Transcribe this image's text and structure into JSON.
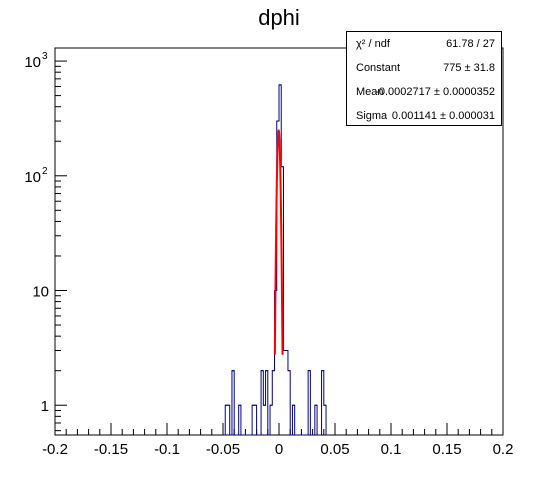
{
  "chart_data": {
    "type": "histogram",
    "title": "dphi",
    "xlabel": "",
    "ylabel": "",
    "xlim": [
      -0.2,
      0.2
    ],
    "ylim": [
      0.55,
      1300
    ],
    "yscale": "log",
    "grid": false,
    "x_ticks": [
      "-0.2",
      "-0.15",
      "-0.1",
      "-0.05",
      "0",
      "0.05",
      "0.1",
      "0.15",
      "0.2"
    ],
    "y_ticks": [
      {
        "value": 1,
        "label": "1"
      },
      {
        "value": 10,
        "label": "10"
      },
      {
        "value": 100,
        "label": "10",
        "exp": "2"
      },
      {
        "value": 1000,
        "label": "10",
        "exp": "3"
      }
    ],
    "bin_width": 0.002,
    "bins": [
      {
        "x_low": -0.048,
        "count": 1
      },
      {
        "x_low": -0.046,
        "count": 1
      },
      {
        "x_low": -0.042,
        "count": 2
      },
      {
        "x_low": -0.036,
        "count": 1
      },
      {
        "x_low": -0.024,
        "count": 1
      },
      {
        "x_low": -0.022,
        "count": 1
      },
      {
        "x_low": -0.016,
        "count": 2
      },
      {
        "x_low": -0.014,
        "count": 1
      },
      {
        "x_low": -0.012,
        "count": 2
      },
      {
        "x_low": -0.008,
        "count": 1
      },
      {
        "x_low": -0.006,
        "count": 2
      },
      {
        "x_low": -0.004,
        "count": 10
      },
      {
        "x_low": -0.002,
        "count": 300
      },
      {
        "x_low": 0.0,
        "count": 620
      },
      {
        "x_low": 0.002,
        "count": 120
      },
      {
        "x_low": 0.004,
        "count": 3
      },
      {
        "x_low": 0.006,
        "count": 3
      },
      {
        "x_low": 0.008,
        "count": 2
      },
      {
        "x_low": 0.012,
        "count": 1
      },
      {
        "x_low": 0.026,
        "count": 2
      },
      {
        "x_low": 0.032,
        "count": 1
      },
      {
        "x_low": 0.038,
        "count": 2
      },
      {
        "x_low": 0.04,
        "count": 1
      }
    ],
    "fit": {
      "function": "gaus",
      "constant": 775,
      "mean": -0.0002717,
      "sigma": 0.001141,
      "color": "#ff0000"
    },
    "histogram_color": "#000080",
    "stats": [
      {
        "name": "χ² / ndf",
        "value": "61.78 / 27"
      },
      {
        "name": "Constant",
        "value": "775 ± 31.8"
      },
      {
        "name": "Mean",
        "value": "-0.0002717 ± 0.0000352"
      },
      {
        "name": "Sigma",
        "value": "0.001141 ± 0.000031"
      }
    ]
  }
}
